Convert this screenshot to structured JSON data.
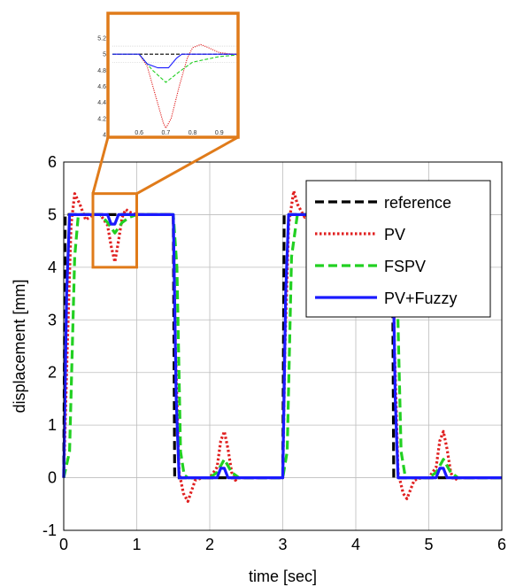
{
  "chart_data": [
    {
      "type": "line",
      "xlabel": "time [sec]",
      "ylabel": "displacement [mm]",
      "xlim": [
        0,
        6
      ],
      "ylim": [
        -1,
        6
      ],
      "xticks": [
        "0",
        "1",
        "2",
        "3",
        "4",
        "5",
        "6"
      ],
      "yticks": [
        "-1",
        "0",
        "1",
        "2",
        "3",
        "4",
        "5",
        "6"
      ],
      "grid": true,
      "legend_position": "top-right",
      "series": [
        {
          "name": "reference",
          "color": "#000000",
          "style": "dashed",
          "x": [
            0,
            0.02,
            1.5,
            1.52,
            3.0,
            3.02,
            4.5,
            4.52,
            6.0
          ],
          "y": [
            0,
            5,
            5,
            0,
            0,
            5,
            5,
            0,
            0
          ]
        },
        {
          "name": "PV",
          "color": "#e02020",
          "style": "dotted",
          "x": [
            0,
            0.05,
            0.1,
            0.15,
            0.22,
            0.3,
            0.4,
            0.5,
            0.6,
            0.65,
            0.7,
            0.75,
            0.8,
            0.85,
            0.9,
            1.0,
            1.5,
            1.53,
            1.58,
            1.64,
            1.7,
            1.8,
            1.9,
            2.0,
            2.1,
            2.15,
            2.2,
            2.25,
            2.3,
            2.35,
            2.4,
            2.5,
            3.0,
            3.03,
            3.08,
            3.15,
            3.2,
            3.3,
            3.4,
            3.5,
            3.6,
            3.65,
            3.7,
            3.75,
            3.8,
            3.9,
            4.0,
            4.5,
            4.53,
            4.58,
            4.65,
            4.7,
            4.8,
            4.9,
            5.0,
            5.1,
            5.15,
            5.2,
            5.25,
            5.3,
            5.35,
            5.4,
            5.5,
            6.0
          ],
          "y": [
            0,
            2.5,
            4.8,
            5.4,
            5.2,
            4.9,
            5.0,
            5.0,
            4.8,
            4.4,
            4.1,
            4.5,
            4.95,
            5.1,
            5.05,
            5.0,
            5.0,
            2.5,
            0.1,
            -0.3,
            -0.45,
            -0.05,
            0.0,
            0.0,
            0.2,
            0.7,
            0.88,
            0.55,
            0.1,
            -0.05,
            0.0,
            0.0,
            0.0,
            2.5,
            4.8,
            5.45,
            5.2,
            4.95,
            5.0,
            5.0,
            4.8,
            4.4,
            4.1,
            4.5,
            5.0,
            5.05,
            5.0,
            5.0,
            2.5,
            0.1,
            -0.3,
            -0.4,
            -0.05,
            0.0,
            0.0,
            0.2,
            0.7,
            0.88,
            0.55,
            0.1,
            -0.05,
            0.0,
            0.0,
            0.0
          ]
        },
        {
          "name": "FSPV",
          "color": "#22d022",
          "style": "dashed",
          "x": [
            0,
            0.08,
            0.15,
            0.2,
            0.3,
            0.5,
            0.6,
            0.7,
            0.8,
            0.9,
            1.0,
            1.5,
            1.55,
            1.6,
            1.65,
            1.7,
            2.0,
            2.1,
            2.2,
            2.3,
            2.4,
            3.0,
            3.06,
            3.12,
            3.2,
            3.3,
            3.5,
            3.6,
            3.7,
            3.8,
            3.9,
            4.0,
            4.5,
            4.56,
            4.62,
            4.68,
            5.0,
            5.1,
            5.2,
            5.3,
            5.4,
            6.0
          ],
          "y": [
            0,
            0.5,
            4.2,
            5.0,
            5.0,
            5.0,
            4.85,
            4.65,
            4.85,
            4.95,
            5.0,
            5.0,
            4.0,
            0.5,
            0.05,
            0.0,
            0.0,
            0.1,
            0.35,
            0.1,
            0.0,
            0.0,
            0.5,
            4.2,
            5.0,
            5.0,
            5.0,
            4.85,
            4.65,
            4.85,
            4.95,
            5.0,
            5.0,
            4.0,
            0.5,
            0.0,
            0.0,
            0.1,
            0.35,
            0.1,
            0.0,
            0.0
          ]
        },
        {
          "name": "PV+Fuzzy",
          "color": "#1a1aff",
          "style": "solid",
          "x": [
            0,
            0.04,
            0.08,
            0.1,
            0.3,
            0.6,
            0.65,
            0.7,
            0.75,
            0.8,
            1.5,
            1.54,
            1.58,
            1.6,
            2.1,
            2.15,
            2.2,
            2.25,
            3.0,
            3.04,
            3.08,
            3.1,
            3.6,
            3.65,
            3.7,
            3.75,
            4.5,
            4.54,
            4.58,
            4.6,
            5.1,
            5.15,
            5.2,
            5.25,
            6.0
          ],
          "y": [
            0,
            3.5,
            5.0,
            5.0,
            5.0,
            5.0,
            4.82,
            4.82,
            5.0,
            5.0,
            5.0,
            1.5,
            0.0,
            0.0,
            0.0,
            0.18,
            0.18,
            0.0,
            0.0,
            3.5,
            5.0,
            5.0,
            5.0,
            4.82,
            4.82,
            5.0,
            5.0,
            1.5,
            0.0,
            0.0,
            0.0,
            0.18,
            0.18,
            0.0,
            0.0
          ]
        }
      ]
    },
    {
      "type": "line",
      "role": "zoom-inset",
      "xlim": [
        0.5,
        1.0
      ],
      "ylim": [
        4.0,
        5.2
      ],
      "xticks": [
        "0.6",
        "0.7",
        "0.8",
        "0.9"
      ],
      "yticks": [
        "4",
        "4.2",
        "4.4",
        "4.6",
        "4.8",
        "5",
        "5.2"
      ],
      "zoom_region": {
        "x": [
          0.4,
          1.0
        ],
        "y": [
          4.0,
          5.4
        ]
      },
      "border_color": "#e07b1a",
      "series": [
        {
          "name": "reference",
          "color": "#000000",
          "style": "dashed",
          "x": [
            0.5,
            1.0
          ],
          "y": [
            5.0,
            5.0
          ]
        },
        {
          "name": "PV",
          "color": "#e02020",
          "style": "dotted",
          "x": [
            0.5,
            0.6,
            0.63,
            0.66,
            0.69,
            0.7,
            0.72,
            0.75,
            0.78,
            0.8,
            0.83,
            0.86,
            0.9,
            0.95,
            1.0
          ],
          "y": [
            5.0,
            5.0,
            4.85,
            4.5,
            4.15,
            4.08,
            4.2,
            4.6,
            4.95,
            5.08,
            5.12,
            5.08,
            5.02,
            5.0,
            5.0
          ]
        },
        {
          "name": "FSPV",
          "color": "#22d022",
          "style": "dashed",
          "x": [
            0.5,
            0.6,
            0.65,
            0.7,
            0.75,
            0.8,
            0.9,
            1.0
          ],
          "y": [
            5.0,
            5.0,
            4.8,
            4.65,
            4.78,
            4.9,
            4.97,
            5.0
          ]
        },
        {
          "name": "PV+Fuzzy",
          "color": "#1a1aff",
          "style": "solid",
          "x": [
            0.5,
            0.6,
            0.63,
            0.67,
            0.71,
            0.74,
            0.76,
            1.0
          ],
          "y": [
            5.0,
            5.0,
            4.88,
            4.83,
            4.83,
            4.95,
            5.0,
            5.0
          ]
        }
      ]
    }
  ]
}
